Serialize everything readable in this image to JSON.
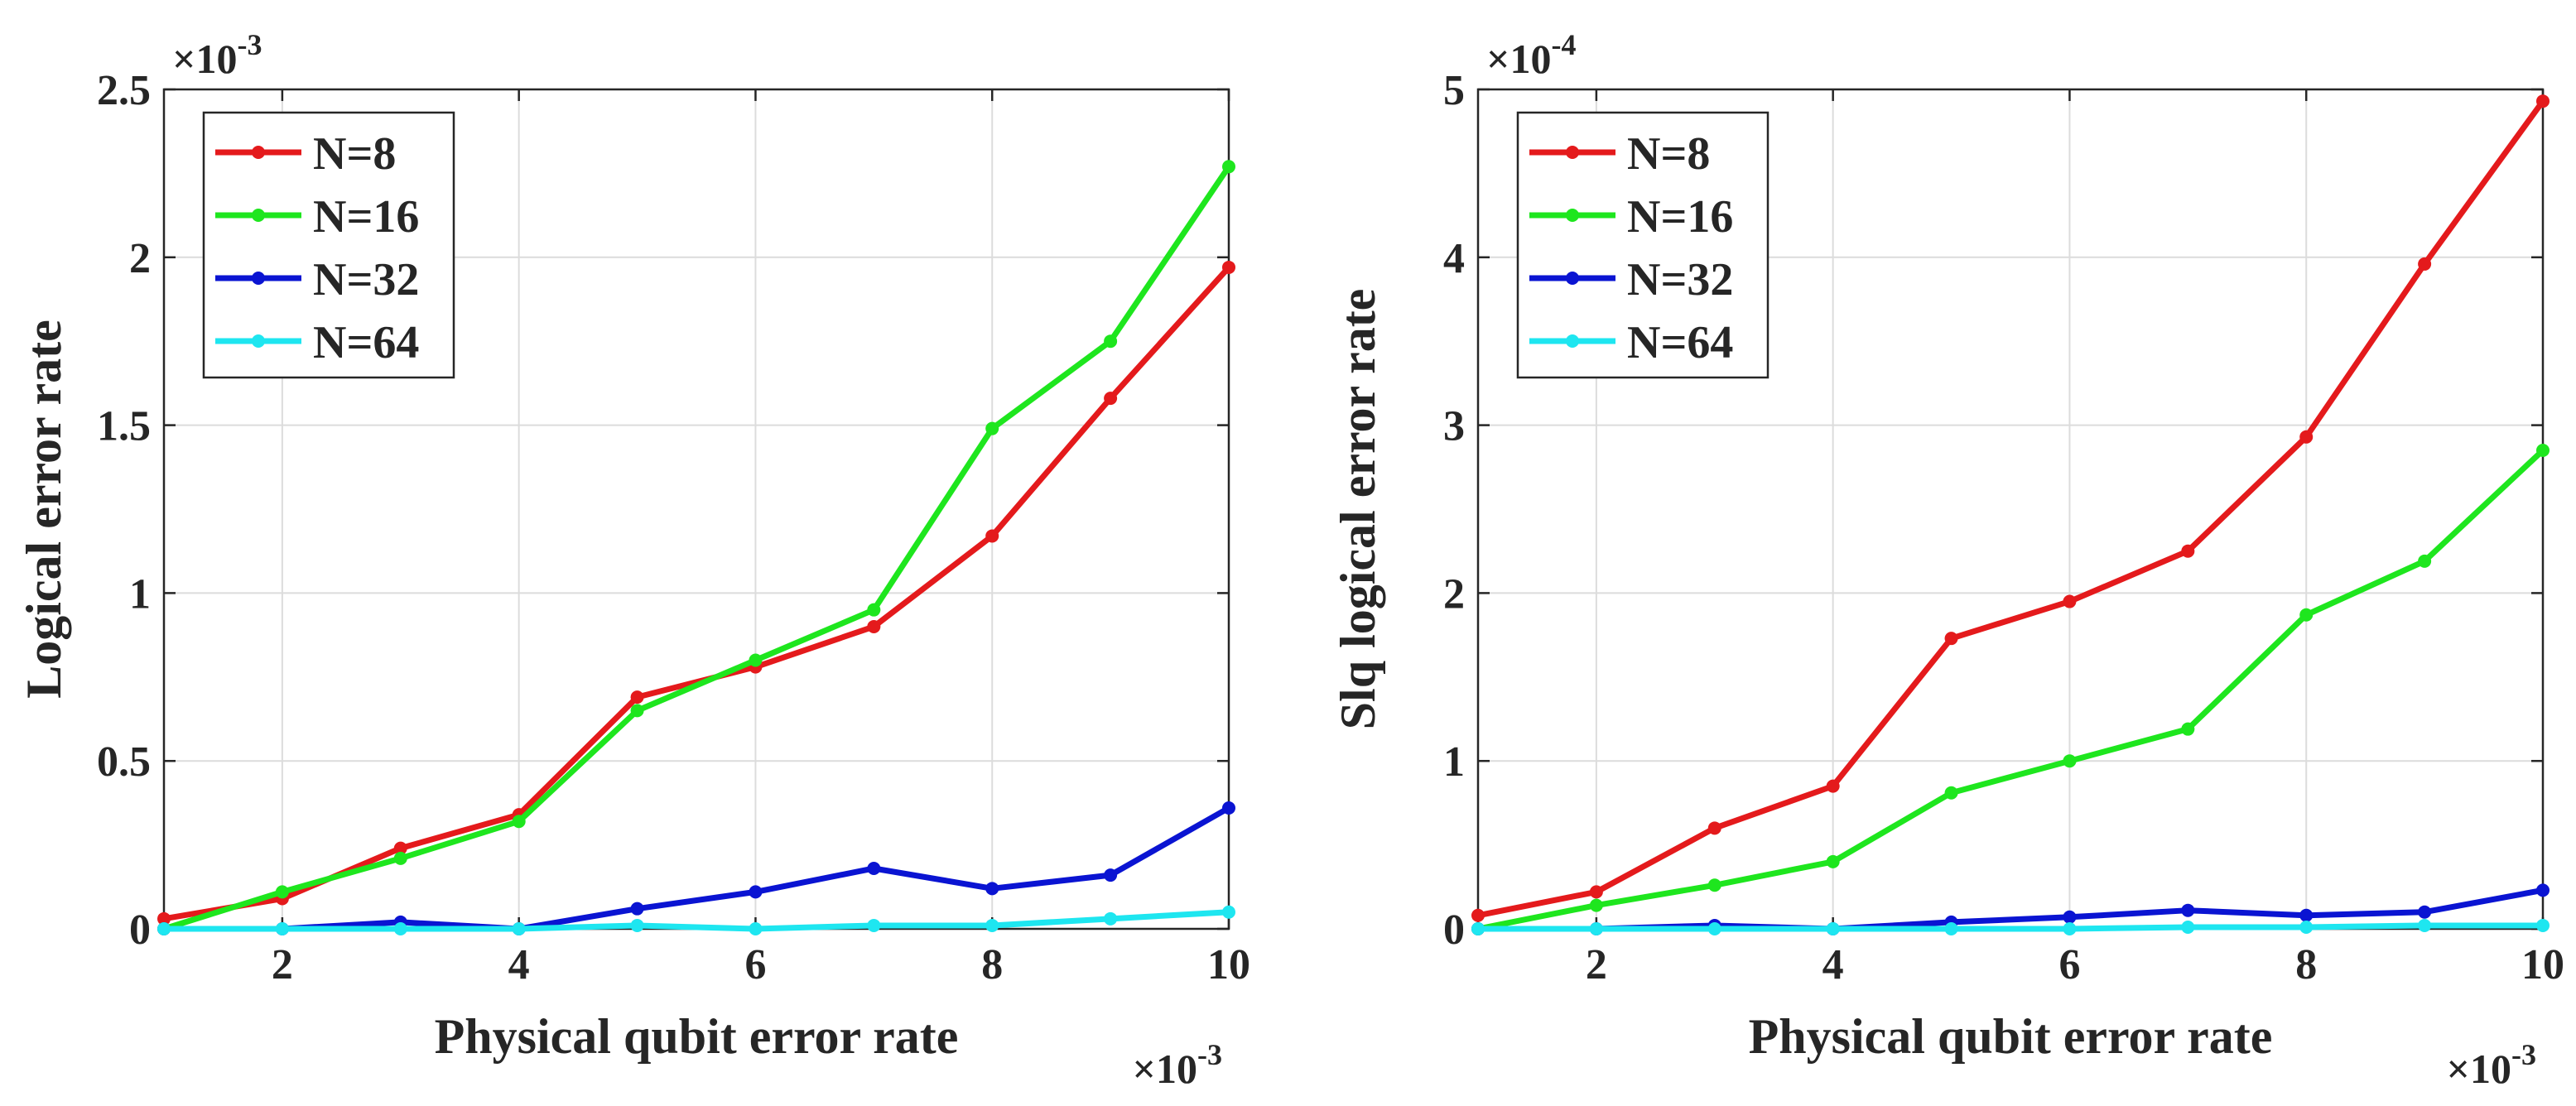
{
  "chart_data": [
    {
      "type": "line",
      "title": "",
      "xlabel": "Physical qubit error rate",
      "ylabel": "Logical error rate",
      "x_multiplier": "×10",
      "x_exponent": "-3",
      "y_multiplier": "×10",
      "y_exponent": "-3",
      "xlim": [
        1,
        10
      ],
      "ylim": [
        0,
        2.5
      ],
      "xticks": [
        2,
        4,
        6,
        8,
        10
      ],
      "yticks": [
        0,
        0.5,
        1,
        1.5,
        2,
        2.5
      ],
      "xtick_labels": [
        "2",
        "4",
        "6",
        "8",
        "10"
      ],
      "ytick_labels": [
        "0",
        "0.5",
        "1",
        "1.5",
        "2",
        "2.5"
      ],
      "grid": true,
      "legend_position": "top-left",
      "x": [
        1,
        2,
        3,
        4,
        5,
        6,
        7,
        8,
        9,
        10
      ],
      "series": [
        {
          "name": "N=8",
          "color": "#e41a1c",
          "values": [
            0.03,
            0.09,
            0.24,
            0.34,
            0.69,
            0.78,
            0.9,
            1.17,
            1.58,
            1.97
          ]
        },
        {
          "name": "N=16",
          "color": "#1ee61e",
          "values": [
            0.0,
            0.11,
            0.21,
            0.32,
            0.65,
            0.8,
            0.95,
            1.49,
            1.75,
            2.27
          ]
        },
        {
          "name": "N=32",
          "color": "#0a14d2",
          "values": [
            0.0,
            0.0,
            0.02,
            0.0,
            0.06,
            0.11,
            0.18,
            0.12,
            0.16,
            0.36
          ]
        },
        {
          "name": "N=64",
          "color": "#1ee6f0",
          "values": [
            0.0,
            0.0,
            0.0,
            0.0,
            0.01,
            0.0,
            0.01,
            0.01,
            0.03,
            0.05
          ]
        }
      ]
    },
    {
      "type": "line",
      "title": "",
      "xlabel": "Physical qubit error rate",
      "ylabel": "Slq logical error rate",
      "x_multiplier": "×10",
      "x_exponent": "-3",
      "y_multiplier": "×10",
      "y_exponent": "-4",
      "xlim": [
        1,
        10
      ],
      "ylim": [
        0,
        5
      ],
      "xticks": [
        2,
        4,
        6,
        8,
        10
      ],
      "yticks": [
        0,
        1,
        2,
        3,
        4,
        5
      ],
      "xtick_labels": [
        "2",
        "4",
        "6",
        "8",
        "10"
      ],
      "ytick_labels": [
        "0",
        "1",
        "2",
        "3",
        "4",
        "5"
      ],
      "grid": true,
      "legend_position": "top-left",
      "x": [
        1,
        2,
        3,
        4,
        5,
        6,
        7,
        8,
        9,
        10
      ],
      "series": [
        {
          "name": "N=8",
          "color": "#e41a1c",
          "values": [
            0.08,
            0.22,
            0.6,
            0.85,
            1.73,
            1.95,
            2.25,
            2.93,
            3.96,
            4.93
          ]
        },
        {
          "name": "N=16",
          "color": "#1ee61e",
          "values": [
            0.0,
            0.14,
            0.26,
            0.4,
            0.81,
            1.0,
            1.19,
            1.87,
            2.19,
            2.85
          ]
        },
        {
          "name": "N=32",
          "color": "#0a14d2",
          "values": [
            0.0,
            0.0,
            0.02,
            0.0,
            0.04,
            0.07,
            0.11,
            0.08,
            0.1,
            0.23
          ]
        },
        {
          "name": "N=64",
          "color": "#1ee6f0",
          "values": [
            0.0,
            0.0,
            0.0,
            0.0,
            0.0,
            0.0,
            0.01,
            0.01,
            0.02,
            0.02
          ]
        }
      ]
    }
  ]
}
